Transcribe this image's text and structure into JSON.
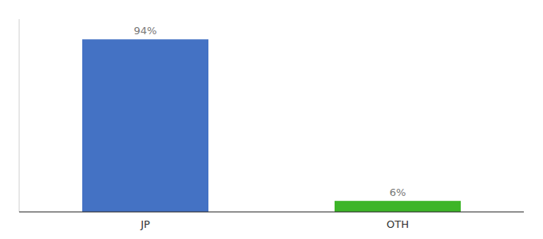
{
  "chart_data": {
    "type": "bar",
    "categories": [
      "JP",
      "OTH"
    ],
    "values": [
      94,
      6
    ],
    "value_labels": [
      "94%",
      "6%"
    ],
    "colors": [
      "#4472C4",
      "#3DB528"
    ],
    "ylim": [
      0,
      105
    ],
    "data_labels": true,
    "tick_labels": "x",
    "grid": false
  }
}
